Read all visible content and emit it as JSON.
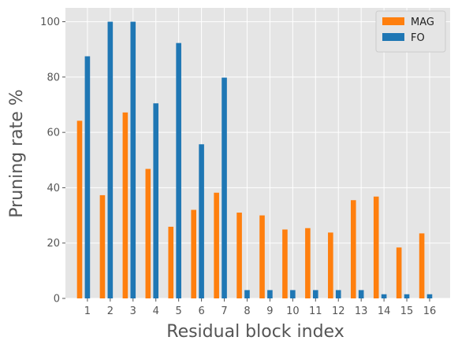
{
  "chart_data": {
    "type": "bar",
    "title": "",
    "xlabel": "Residual block index",
    "ylabel": "Pruning rate %",
    "categories": [
      "1",
      "2",
      "3",
      "4",
      "5",
      "6",
      "7",
      "8",
      "9",
      "10",
      "11",
      "12",
      "13",
      "14",
      "15",
      "16"
    ],
    "series": [
      {
        "name": "MAG",
        "color": "#ff7f0e",
        "values": [
          64.2,
          37.3,
          67.2,
          46.8,
          25.9,
          32.0,
          38.2,
          31.0,
          30.0,
          24.9,
          25.4,
          23.8,
          35.5,
          36.8,
          18.4,
          23.5
        ]
      },
      {
        "name": "FO",
        "color": "#1f77b4",
        "values": [
          87.5,
          100.0,
          100.0,
          70.5,
          92.3,
          55.7,
          79.8,
          3.0,
          3.0,
          3.0,
          3.0,
          3.0,
          3.0,
          1.5,
          1.5,
          1.5
        ]
      }
    ],
    "ylim": [
      0,
      105
    ],
    "yticks": [
      0,
      20,
      40,
      60,
      80,
      100
    ],
    "grid": true,
    "legend_position": "top-right",
    "plot_background": "#e5e5e5"
  }
}
